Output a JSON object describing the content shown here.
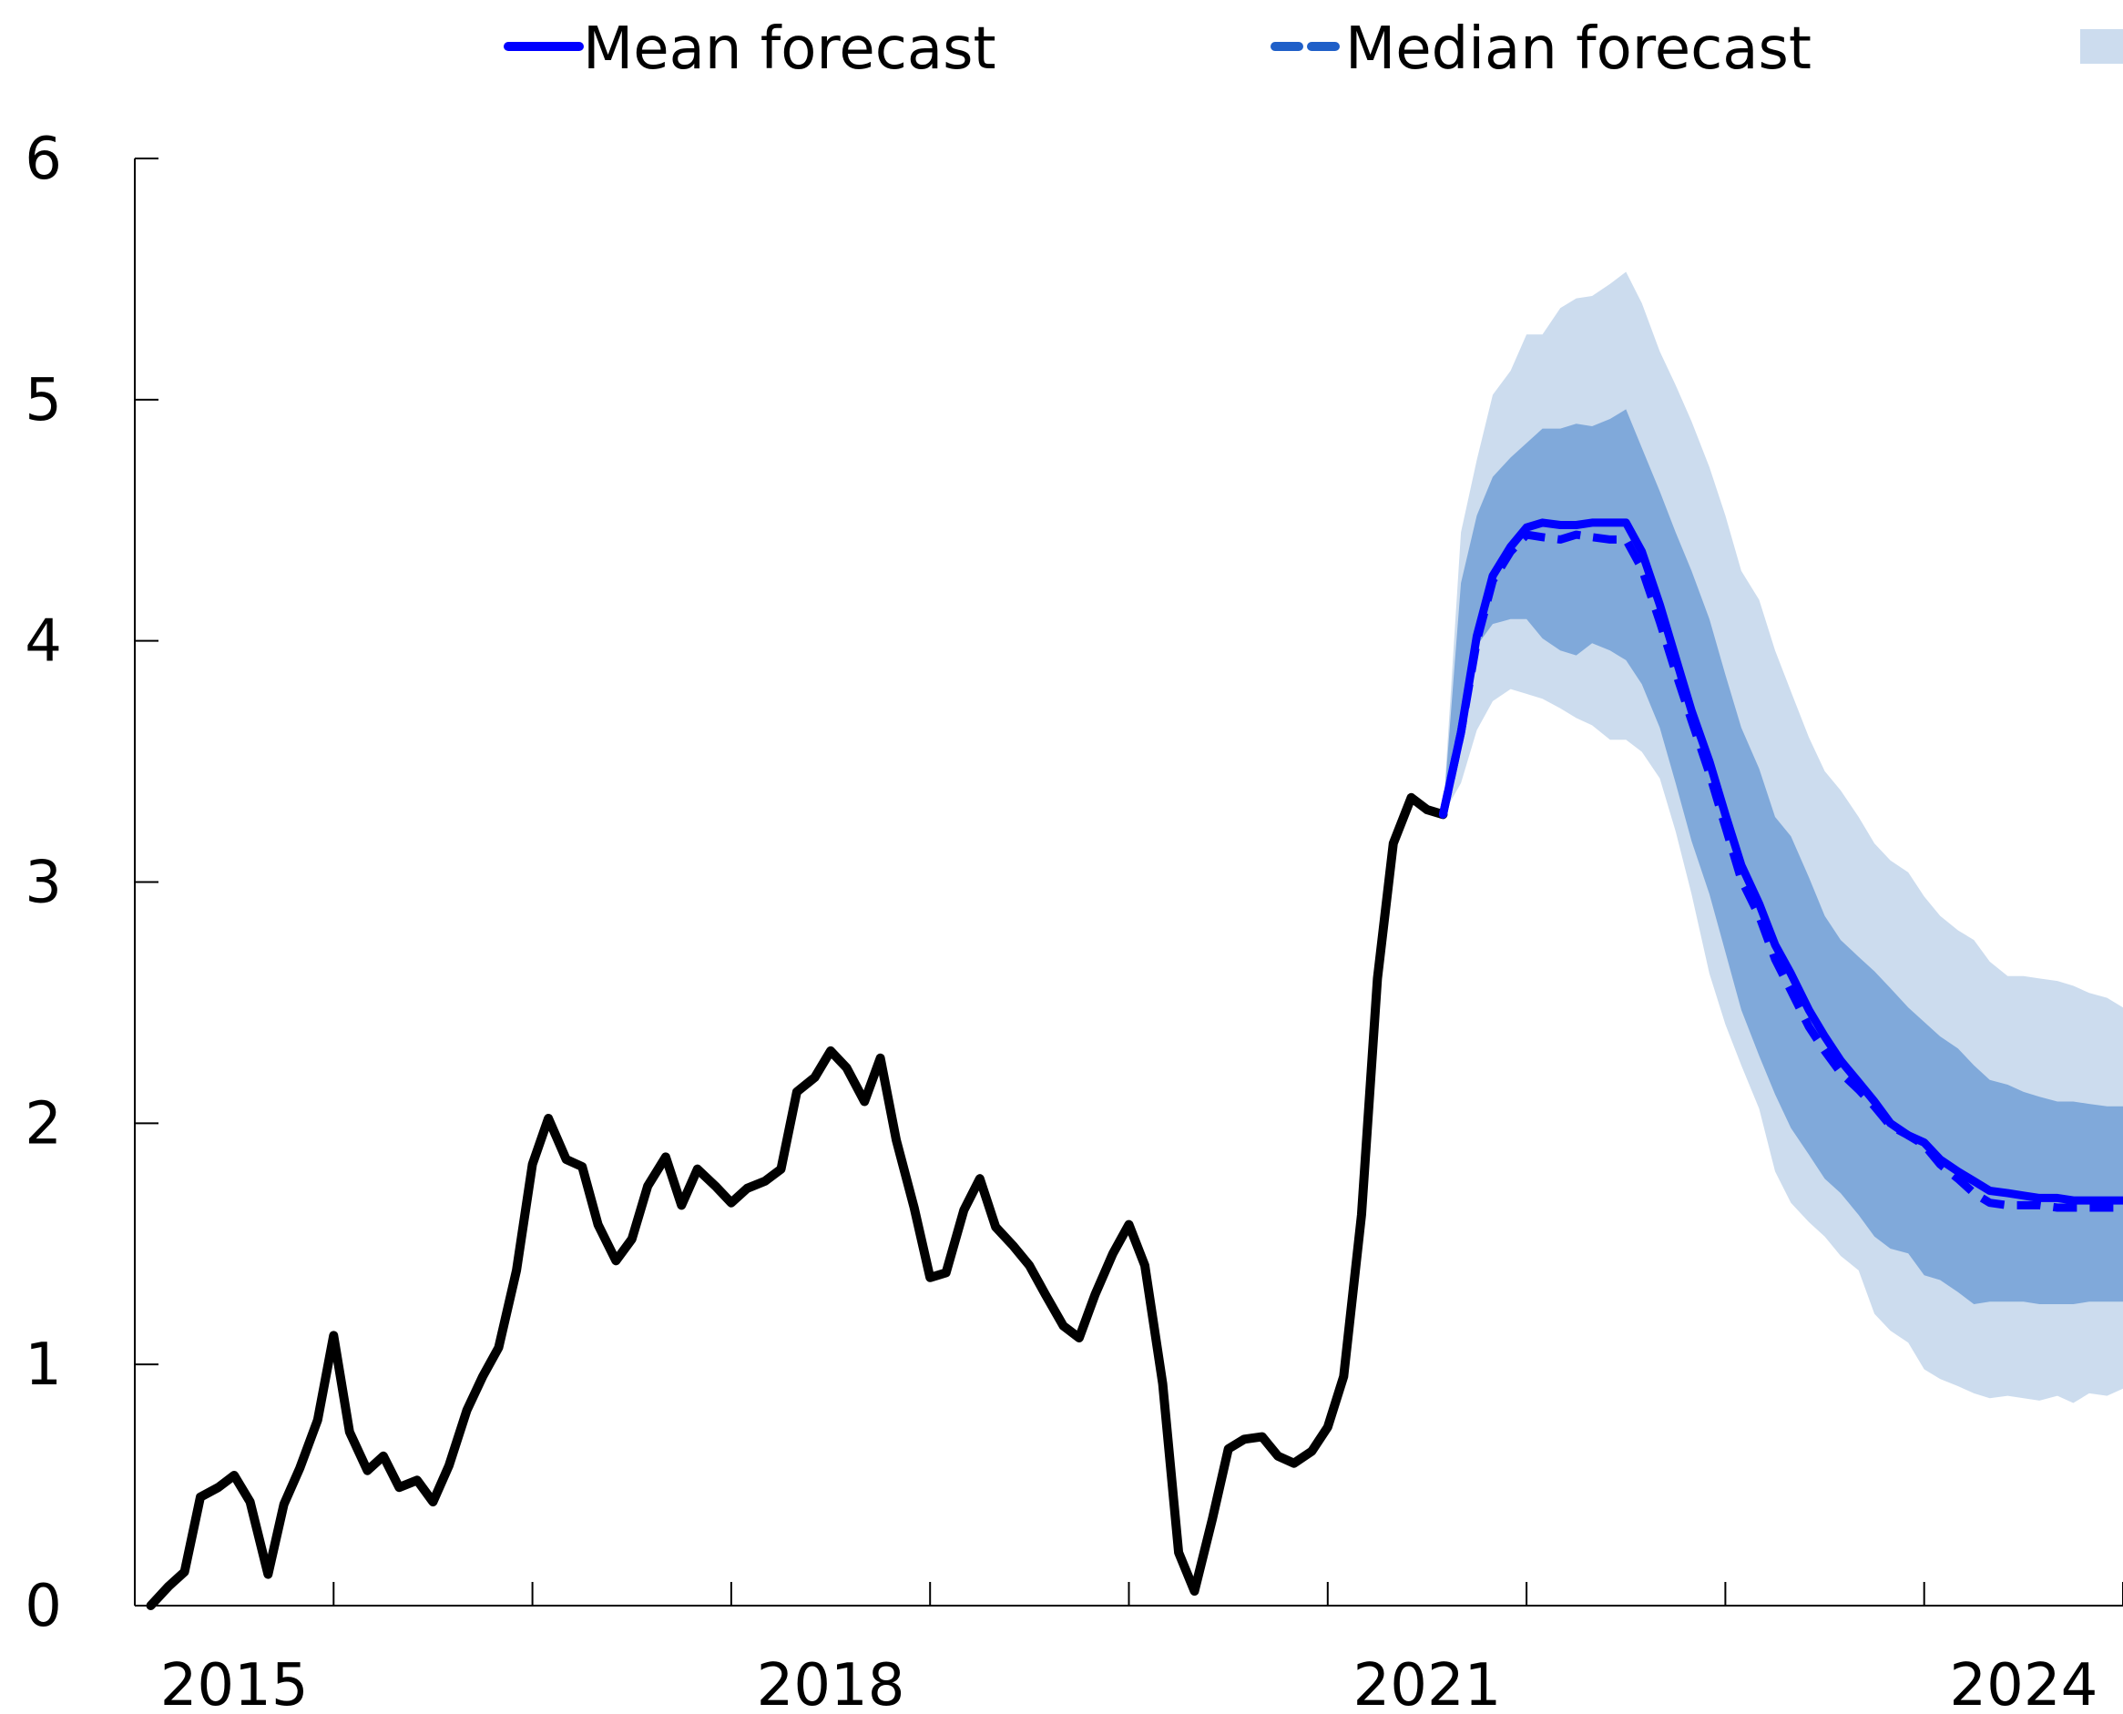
{
  "chart_data": {
    "type": "line",
    "title": "",
    "xlabel": "",
    "ylabel": "",
    "ylim": [
      0,
      6
    ],
    "xlim": [
      2014.0,
      2024.0
    ],
    "y_ticks": [
      0,
      1,
      2,
      3,
      4,
      5,
      6
    ],
    "x_tick_positions": [
      2014.0,
      2015.0,
      2016.0,
      2017.0,
      2018.0,
      2019.0,
      2020.0,
      2021.0,
      2022.0,
      2023.0,
      2024.0
    ],
    "x_tick_labels": [
      {
        "label": "2015",
        "at": 2014.5
      },
      {
        "label": "2018",
        "at": 2017.5
      },
      {
        "label": "2021",
        "at": 2020.5
      },
      {
        "label": "2024",
        "at": 2023.5
      }
    ],
    "legend": {
      "placement": "top",
      "entries": [
        {
          "label": "Mean forecast",
          "style": "solid"
        },
        {
          "label": "Median forecast",
          "style": "dashed"
        },
        {
          "label": "",
          "style": "band"
        }
      ]
    },
    "colors": {
      "history": "#000000",
      "mean": "#0000ff",
      "median": "#1f5fc8",
      "band_inner": "#80a9da",
      "band_outer": "#ccdcee",
      "axis": "#000000"
    },
    "series": [
      {
        "key": "history",
        "x": [
          2014.08,
          2014.17,
          2014.25,
          2014.33,
          2014.42,
          2014.5,
          2014.58,
          2014.67,
          2014.75,
          2014.83,
          2014.92,
          2015.0,
          2015.08,
          2015.17,
          2015.25,
          2015.33,
          2015.42,
          2015.5,
          2015.58,
          2015.67,
          2015.75,
          2015.83,
          2015.92,
          2016.0,
          2016.08,
          2016.17,
          2016.25,
          2016.33,
          2016.42,
          2016.5,
          2016.58,
          2016.67,
          2016.75,
          2016.83,
          2016.92,
          2017.0,
          2017.08,
          2017.17,
          2017.25,
          2017.33,
          2017.42,
          2017.5,
          2017.58,
          2017.67,
          2017.75,
          2017.83,
          2017.92,
          2018.0,
          2018.08,
          2018.17,
          2018.25,
          2018.33,
          2018.42,
          2018.5,
          2018.58,
          2018.67,
          2018.75,
          2018.83,
          2018.92,
          2019.0,
          2019.08,
          2019.17,
          2019.25,
          2019.33,
          2019.42,
          2019.5,
          2019.58,
          2019.67,
          2019.75,
          2019.83,
          2019.92,
          2020.0,
          2020.08,
          2020.17,
          2020.25,
          2020.33,
          2020.42,
          2020.5,
          2020.58
        ],
        "y": [
          0.0,
          0.08,
          0.14,
          0.45,
          0.49,
          0.54,
          0.43,
          0.13,
          0.42,
          0.57,
          0.77,
          1.12,
          0.72,
          0.56,
          0.62,
          0.49,
          0.52,
          0.43,
          0.58,
          0.81,
          0.95,
          1.07,
          1.39,
          1.83,
          2.02,
          1.85,
          1.82,
          1.58,
          1.43,
          1.52,
          1.74,
          1.86,
          1.66,
          1.81,
          1.74,
          1.67,
          1.73,
          1.76,
          1.81,
          2.13,
          2.19,
          2.3,
          2.23,
          2.09,
          2.27,
          1.93,
          1.65,
          1.36,
          1.38,
          1.64,
          1.77,
          1.57,
          1.49,
          1.41,
          1.29,
          1.16,
          1.11,
          1.29,
          1.46,
          1.58,
          1.41,
          0.92,
          0.22,
          0.06,
          0.36,
          0.65,
          0.69,
          0.7,
          0.62,
          0.59,
          0.64,
          0.74,
          0.95,
          1.62,
          2.6,
          3.16,
          3.35,
          3.3,
          3.28
        ]
      },
      {
        "name": "Mean forecast",
        "key": "mean",
        "x": [
          2020.58,
          2020.67,
          2020.75,
          2020.83,
          2020.92,
          2021.0,
          2021.08,
          2021.17,
          2021.25,
          2021.33,
          2021.42,
          2021.5,
          2021.58,
          2021.67,
          2021.75,
          2021.83,
          2021.92,
          2022.0,
          2022.08,
          2022.17,
          2022.25,
          2022.33,
          2022.42,
          2022.5,
          2022.58,
          2022.67,
          2022.75,
          2022.83,
          2022.92,
          2023.0,
          2023.08,
          2023.17,
          2023.25,
          2023.33,
          2023.42,
          2023.5,
          2023.58,
          2023.67,
          2023.75,
          2023.83,
          2023.92,
          2024.0
        ],
        "y": [
          3.28,
          3.62,
          4.02,
          4.27,
          4.39,
          4.47,
          4.49,
          4.48,
          4.48,
          4.49,
          4.49,
          4.49,
          4.37,
          4.15,
          3.93,
          3.71,
          3.5,
          3.28,
          3.07,
          2.91,
          2.74,
          2.62,
          2.47,
          2.36,
          2.26,
          2.17,
          2.09,
          2.0,
          1.95,
          1.92,
          1.85,
          1.8,
          1.76,
          1.72,
          1.71,
          1.7,
          1.69,
          1.69,
          1.68,
          1.68,
          1.68,
          1.68
        ]
      },
      {
        "name": "Median forecast",
        "key": "median",
        "x": [
          2020.58,
          2020.67,
          2020.75,
          2020.83,
          2020.92,
          2021.0,
          2021.08,
          2021.17,
          2021.25,
          2021.33,
          2021.42,
          2021.5,
          2021.58,
          2021.67,
          2021.75,
          2021.83,
          2021.92,
          2022.0,
          2022.08,
          2022.17,
          2022.25,
          2022.33,
          2022.42,
          2022.5,
          2022.58,
          2022.67,
          2022.75,
          2022.83,
          2022.92,
          2023.0,
          2023.08,
          2023.17,
          2023.25,
          2023.33,
          2023.42,
          2023.5,
          2023.58,
          2023.67,
          2023.75,
          2023.83,
          2023.92,
          2024.0
        ],
        "y": [
          3.28,
          3.62,
          4.0,
          4.25,
          4.37,
          4.44,
          4.43,
          4.42,
          4.44,
          4.43,
          4.42,
          4.42,
          4.3,
          4.08,
          3.87,
          3.67,
          3.45,
          3.23,
          3.01,
          2.86,
          2.68,
          2.55,
          2.4,
          2.3,
          2.21,
          2.14,
          2.07,
          1.99,
          1.95,
          1.91,
          1.83,
          1.77,
          1.71,
          1.67,
          1.66,
          1.66,
          1.66,
          1.65,
          1.65,
          1.65,
          1.65,
          1.65
        ]
      },
      {
        "key": "band_outer",
        "x": [
          2020.58,
          2020.67,
          2020.75,
          2020.83,
          2020.92,
          2021.0,
          2021.08,
          2021.17,
          2021.25,
          2021.33,
          2021.42,
          2021.5,
          2021.58,
          2021.67,
          2021.75,
          2021.83,
          2021.92,
          2022.0,
          2022.08,
          2022.17,
          2022.25,
          2022.33,
          2022.42,
          2022.5,
          2022.58,
          2022.67,
          2022.75,
          2022.83,
          2022.92,
          2023.0,
          2023.08,
          2023.17,
          2023.25,
          2023.33,
          2023.42,
          2023.5,
          2023.58,
          2023.67,
          2023.75,
          2023.83,
          2023.92,
          2024.0
        ],
        "upper": [
          3.28,
          4.45,
          4.75,
          5.02,
          5.12,
          5.27,
          5.27,
          5.38,
          5.42,
          5.43,
          5.48,
          5.53,
          5.4,
          5.2,
          5.06,
          4.91,
          4.72,
          4.52,
          4.29,
          4.17,
          3.96,
          3.79,
          3.6,
          3.46,
          3.38,
          3.27,
          3.16,
          3.09,
          3.04,
          2.94,
          2.86,
          2.8,
          2.76,
          2.67,
          2.61,
          2.61,
          2.6,
          2.59,
          2.57,
          2.54,
          2.52,
          2.48
        ],
        "lower": [
          3.28,
          3.41,
          3.63,
          3.75,
          3.8,
          3.78,
          3.76,
          3.72,
          3.68,
          3.65,
          3.59,
          3.59,
          3.54,
          3.43,
          3.21,
          2.95,
          2.62,
          2.41,
          2.24,
          2.06,
          1.8,
          1.67,
          1.59,
          1.53,
          1.45,
          1.39,
          1.21,
          1.14,
          1.09,
          0.98,
          0.94,
          0.91,
          0.88,
          0.86,
          0.87,
          0.86,
          0.85,
          0.87,
          0.84,
          0.88,
          0.87,
          0.9
        ]
      },
      {
        "key": "band_inner",
        "x": [
          2020.58,
          2020.67,
          2020.75,
          2020.83,
          2020.92,
          2021.0,
          2021.08,
          2021.17,
          2021.25,
          2021.33,
          2021.42,
          2021.5,
          2021.58,
          2021.67,
          2021.75,
          2021.83,
          2021.92,
          2022.0,
          2022.08,
          2022.17,
          2022.25,
          2022.33,
          2022.42,
          2022.5,
          2022.58,
          2022.67,
          2022.75,
          2022.83,
          2022.92,
          2023.0,
          2023.08,
          2023.17,
          2023.25,
          2023.33,
          2023.42,
          2023.5,
          2023.58,
          2023.67,
          2023.75,
          2023.83,
          2023.92,
          2024.0
        ],
        "upper": [
          3.28,
          4.24,
          4.52,
          4.68,
          4.76,
          4.82,
          4.88,
          4.88,
          4.9,
          4.89,
          4.92,
          4.96,
          4.8,
          4.62,
          4.45,
          4.29,
          4.09,
          3.86,
          3.64,
          3.47,
          3.27,
          3.19,
          3.02,
          2.86,
          2.76,
          2.69,
          2.63,
          2.56,
          2.48,
          2.42,
          2.36,
          2.31,
          2.24,
          2.18,
          2.16,
          2.13,
          2.11,
          2.09,
          2.09,
          2.08,
          2.07,
          2.07
        ],
        "lower": [
          3.28,
          3.68,
          3.98,
          4.07,
          4.09,
          4.09,
          4.01,
          3.96,
          3.94,
          3.99,
          3.96,
          3.92,
          3.82,
          3.64,
          3.41,
          3.17,
          2.95,
          2.71,
          2.47,
          2.28,
          2.12,
          1.98,
          1.87,
          1.77,
          1.71,
          1.62,
          1.53,
          1.48,
          1.46,
          1.37,
          1.35,
          1.3,
          1.25,
          1.26,
          1.26,
          1.26,
          1.25,
          1.25,
          1.25,
          1.26,
          1.26,
          1.26
        ]
      }
    ]
  }
}
